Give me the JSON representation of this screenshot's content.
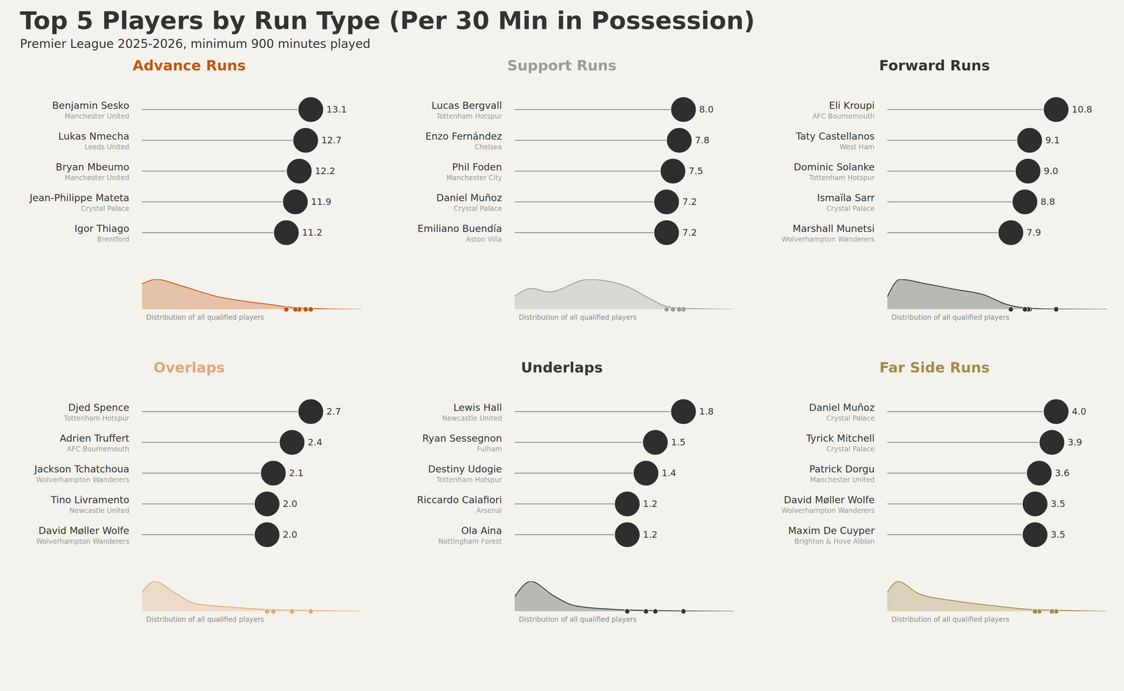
{
  "chart_data": {
    "type": "lollipop",
    "title": "Top 5 Players by Run Type (Per 30 Min in Possession)",
    "subtitle": "Premier League 2025-2026, minimum 900 minutes played",
    "distribution_label": "Distribution of all qualified players",
    "orientation": "horizontal",
    "data_labels": true,
    "tick_labels": false,
    "panels": [
      {
        "title": "Advance Runs",
        "color": "#c9540f",
        "xlim": [
          0,
          17.03
        ],
        "players": [
          "Benjamin Sesko",
          "Lukas Nmecha",
          "Bryan Mbeumo",
          "Jean-Philippe Mateta",
          "Igor Thiago"
        ],
        "teams": [
          "Manchester United",
          "Leeds United",
          "Manchester United",
          "Crystal Palace",
          "Brentford"
        ],
        "values": [
          13.1,
          12.7,
          12.2,
          11.9,
          11.2
        ],
        "value_labels": [
          "13.1",
          "12.7",
          "12.2",
          "11.9",
          "11.2"
        ],
        "distribution": {
          "x": [
            0,
            1.1,
            3,
            5.8,
            8.1,
            9.8,
            11.5,
            13.8,
            17.03
          ],
          "density": [
            0.85,
            1,
            0.79,
            0.43,
            0.26,
            0.17,
            0.07,
            0.02,
            0
          ],
          "ylim": [
            0,
            1
          ]
        }
      },
      {
        "title": "Support Runs",
        "color": "#9a9a9a",
        "xlim": [
          0,
          10.4
        ],
        "players": [
          "Lucas Bergvall",
          "Enzo Fernández",
          "Phil Foden",
          "Daniel Muñoz",
          "Emiliano Buendía"
        ],
        "teams": [
          "Tottenham Hotspur",
          "Chelsea",
          "Manchester City",
          "Crystal Palace",
          "Aston Villa"
        ],
        "values": [
          8.0,
          7.8,
          7.5,
          7.2,
          7.2
        ],
        "value_labels": [
          "8.0",
          "7.8",
          "7.5",
          "7.2",
          "7.2"
        ],
        "distribution": {
          "x": [
            0,
            0.8,
            1.6,
            3.5,
            5.3,
            6.3,
            7.2,
            8.1,
            10.4
          ],
          "density": [
            0.44,
            0.7,
            0.58,
            1,
            0.77,
            0.4,
            0.1,
            0.03,
            0
          ],
          "ylim": [
            0,
            1
          ]
        }
      },
      {
        "title": "Forward Runs",
        "color": "#333333",
        "xlim": [
          0,
          14.04
        ],
        "players": [
          "Eli Kroupi",
          "Taty Castellanos",
          "Dominic Solanke",
          "Ismaïla Sarr",
          "Marshall Munetsi"
        ],
        "teams": [
          "AFC Bournemouth",
          "West Ham",
          "Tottenham Hotspur",
          "Crystal Palace",
          "Wolverhampton Wanderers"
        ],
        "values": [
          10.8,
          9.1,
          9.0,
          8.8,
          7.9
        ],
        "value_labels": [
          "10.8",
          "9.1",
          "9.0",
          "8.8",
          "7.9"
        ],
        "distribution": {
          "x": [
            0,
            0.8,
            2.4,
            4.3,
            6.2,
            7.6,
            8.5,
            10.4,
            14.04
          ],
          "density": [
            0.43,
            1,
            0.86,
            0.67,
            0.48,
            0.17,
            0.07,
            0.01,
            0
          ],
          "ylim": [
            0,
            1
          ]
        }
      },
      {
        "title": "Overlaps",
        "color": "#e2a779",
        "xlim": [
          0,
          3.51
        ],
        "players": [
          "Djed Spence",
          "Adrien Truffert",
          "Jackson Tchatchoua",
          "Tino Livramento",
          "David Møller Wolfe"
        ],
        "teams": [
          "Tottenham Hotspur",
          "AFC Bournemouth",
          "Wolverhampton Wanderers",
          "Newcastle United",
          "Wolverhampton Wanderers"
        ],
        "values": [
          2.7,
          2.4,
          2.1,
          2.0,
          2.0
        ],
        "value_labels": [
          "2.7",
          "2.4",
          "2.1",
          "2.0",
          "2.0"
        ],
        "distribution": {
          "x": [
            0,
            0.2,
            0.5,
            0.85,
            1.44,
            1.9,
            2.6,
            3.51
          ],
          "density": [
            0.65,
            1,
            0.65,
            0.26,
            0.14,
            0.07,
            0.03,
            0
          ],
          "ylim": [
            0,
            1
          ]
        }
      },
      {
        "title": "Underlaps",
        "color": "#2f3b2f",
        "xlim": [
          0,
          2.34
        ],
        "players": [
          "Lewis Hall",
          "Ryan Sessegnon",
          "Destiny Udogie",
          "Riccardo Calafiori",
          "Ola Aina"
        ],
        "teams": [
          "Newcastle United",
          "Fulham",
          "Tottenham Hotspur",
          "Arsenal",
          "Nottingham Forest"
        ],
        "values": [
          1.8,
          1.5,
          1.4,
          1.2,
          1.2
        ],
        "value_labels": [
          "1.8",
          "1.5",
          "1.4",
          "1.2",
          "1.2"
        ],
        "distribution": {
          "x": [
            0,
            0.17,
            0.41,
            0.64,
            1.04,
            1.43,
            2.34
          ],
          "density": [
            0.5,
            1,
            0.53,
            0.19,
            0.07,
            0.03,
            0
          ],
          "ylim": [
            0,
            1
          ]
        }
      },
      {
        "title": "Far Side Runs",
        "color": "#a6894a",
        "xlim": [
          0,
          5.2
        ],
        "players": [
          "Daniel Muñoz",
          "Tyrick Mitchell",
          "Patrick Dorgu",
          "David Møller Wolfe",
          "Maxim De Cuyper"
        ],
        "teams": [
          "Crystal Palace",
          "Crystal Palace",
          "Manchester United",
          "Wolverhampton Wanderers",
          "Brighton & Hove Albion"
        ],
        "values": [
          4.0,
          3.9,
          3.6,
          3.5,
          3.5
        ],
        "value_labels": [
          "4.0",
          "3.9",
          "3.6",
          "3.5",
          "3.5"
        ],
        "distribution": {
          "x": [
            0,
            0.25,
            0.73,
            1.6,
            2.5,
            3.35,
            4.5,
            5.2
          ],
          "density": [
            0.65,
            1,
            0.6,
            0.35,
            0.19,
            0.07,
            0.02,
            0
          ],
          "ylim": [
            0,
            1
          ]
        }
      }
    ]
  }
}
